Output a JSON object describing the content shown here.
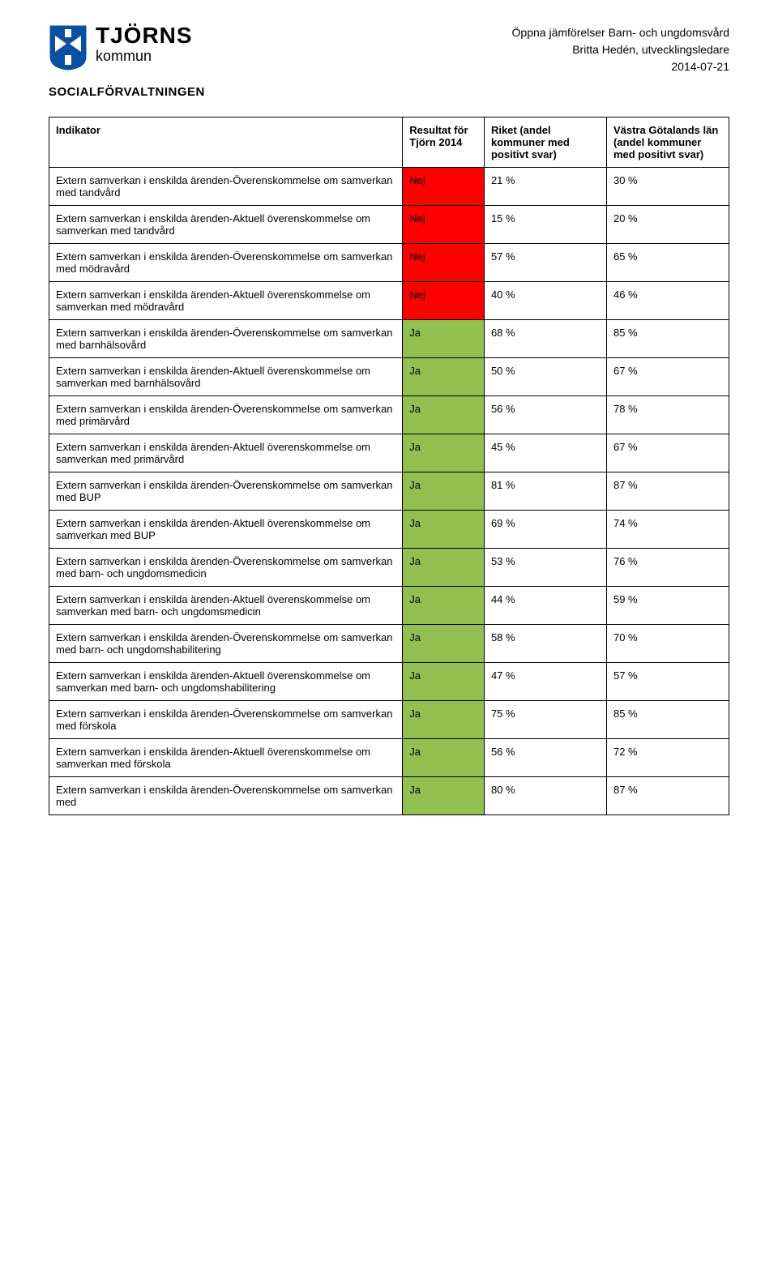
{
  "brand": {
    "title": "TJÖRNS",
    "subtitle": "kommun",
    "crest_bg": "#0a50a1",
    "crest_white": "#ffffff"
  },
  "meta": {
    "line1": "Öppna jämförelser Barn- och ungdomsvård",
    "line2": "Britta Hedén, utvecklingsledare",
    "line3": "2014-07-21"
  },
  "department": "SOCIALFÖRVALTNINGEN",
  "columns": {
    "indicator": "Indikator",
    "result": "Resultat för Tjörn 2014",
    "riket": "Riket (andel kommuner med positivt svar)",
    "vg": "Västra Götalands län (andel kommuner med positivt svar)"
  },
  "colors": {
    "red": "#ff0000",
    "green": "#91c050",
    "border": "#000000",
    "text": "#000000",
    "bg": "#ffffff"
  },
  "rows": [
    {
      "indicator": "Extern samverkan i enskilda ärenden-Överenskommelse om samverkan med tandvård",
      "result": "Nej",
      "result_bg": "#ff0000",
      "riket": "21 %",
      "vg": "30 %"
    },
    {
      "indicator": "Extern samverkan i enskilda ärenden-Aktuell överenskommelse om samverkan med tandvård",
      "result": "Nej",
      "result_bg": "#ff0000",
      "riket": "15 %",
      "vg": "20 %"
    },
    {
      "indicator": "Extern samverkan i enskilda ärenden-Överenskommelse om samverkan med mödravård",
      "result": "Nej",
      "result_bg": "#ff0000",
      "riket": "57 %",
      "vg": "65 %"
    },
    {
      "indicator": "Extern samverkan i enskilda ärenden-Aktuell överenskommelse om samverkan med mödravård",
      "result": "Nej",
      "result_bg": "#ff0000",
      "riket": "40 %",
      "vg": "46 %"
    },
    {
      "indicator": "Extern samverkan i enskilda ärenden-Överenskommelse om samverkan med barnhälsovård",
      "result": "Ja",
      "result_bg": "#91c050",
      "riket": "68 %",
      "vg": "85 %"
    },
    {
      "indicator": "Extern samverkan i enskilda ärenden-Aktuell överenskommelse om samverkan med barnhälsovård",
      "result": "Ja",
      "result_bg": "#91c050",
      "riket": "50 %",
      "vg": "67 %"
    },
    {
      "indicator": "Extern samverkan i enskilda ärenden-Överenskommelse om samverkan med primärvård",
      "result": "Ja",
      "result_bg": "#91c050",
      "riket": "56 %",
      "vg": "78 %"
    },
    {
      "indicator": "Extern samverkan i enskilda ärenden-Aktuell överenskommelse om samverkan med primärvård",
      "result": "Ja",
      "result_bg": "#91c050",
      "riket": "45 %",
      "vg": "67 %"
    },
    {
      "indicator": "Extern samverkan i enskilda ärenden-Överenskommelse om samverkan med BUP",
      "result": "Ja",
      "result_bg": "#91c050",
      "riket": "81 %",
      "vg": "87 %"
    },
    {
      "indicator": "Extern samverkan i enskilda ärenden-Aktuell överenskommelse om samverkan med BUP",
      "result": "Ja",
      "result_bg": "#91c050",
      "riket": "69 %",
      "vg": "74 %"
    },
    {
      "indicator": "Extern samverkan i enskilda ärenden-Överenskommelse om samverkan med barn- och ungdomsmedicin",
      "result": "Ja",
      "result_bg": "#91c050",
      "riket": "53 %",
      "vg": "76 %"
    },
    {
      "indicator": "Extern samverkan i enskilda ärenden-Aktuell överenskommelse om samverkan med barn- och ungdomsmedicin",
      "result": "Ja",
      "result_bg": "#91c050",
      "riket": "44 %",
      "vg": "59 %"
    },
    {
      "indicator": "Extern samverkan i enskilda ärenden-Överenskommelse om samverkan med barn- och ungdomshabilitering",
      "result": "Ja",
      "result_bg": "#91c050",
      "riket": "58 %",
      "vg": "70 %"
    },
    {
      "indicator": "Extern samverkan i enskilda ärenden-Aktuell överenskommelse om samverkan med barn- och ungdomshabilitering",
      "result": "Ja",
      "result_bg": "#91c050",
      "riket": "47 %",
      "vg": "57 %"
    },
    {
      "indicator": "Extern samverkan i enskilda ärenden-Överenskommelse om samverkan med förskola",
      "result": "Ja",
      "result_bg": "#91c050",
      "riket": "75 %",
      "vg": "85 %"
    },
    {
      "indicator": "Extern samverkan i enskilda ärenden-Aktuell överenskommelse om samverkan med förskola",
      "result": "Ja",
      "result_bg": "#91c050",
      "riket": "56 %",
      "vg": "72 %"
    },
    {
      "indicator": "Extern samverkan i enskilda ärenden-Överenskommelse om samverkan med",
      "result": "Ja",
      "result_bg": "#91c050",
      "riket": "80 %",
      "vg": "87 %"
    }
  ]
}
